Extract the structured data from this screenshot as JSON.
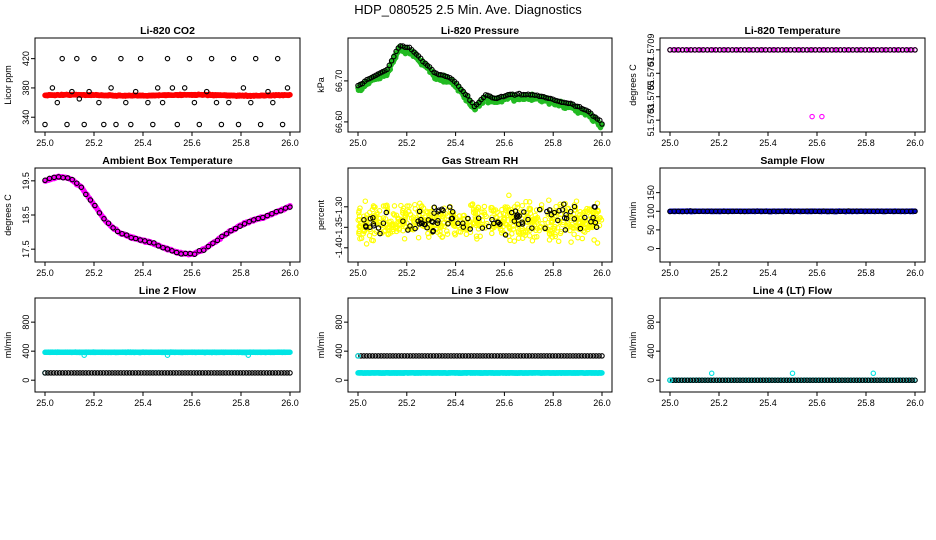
{
  "page": {
    "title": "HDP_080525  2.5 Min. Ave. Diagnostics"
  },
  "colors": {
    "axis": "#000000",
    "red": "#ff0000",
    "green": "#22bb22",
    "magenta": "#ff00ff",
    "yellow": "#ffff00",
    "blue": "#0000cc",
    "cyan": "#00e5e5",
    "black": "#000000"
  },
  "chart_data": [
    {
      "type": "scatter",
      "title": "Li-820 CO2",
      "ylabel": "Licor ppm",
      "xlim": [
        25.0,
        26.0
      ],
      "ylim": [
        328,
        440
      ],
      "xticks": [
        "25.0",
        "25.2",
        "25.4",
        "25.6",
        "25.8",
        "26.0"
      ],
      "yticks": [
        {
          "v": 340,
          "label": "340"
        },
        {
          "v": 380,
          "label": "380"
        },
        {
          "v": 420,
          "label": "420"
        }
      ],
      "series": [
        {
          "color": "red",
          "style": "dense",
          "base": 370,
          "amp": 2,
          "noise": 1.2,
          "count": 400
        },
        {
          "color": "black",
          "style": "points",
          "points": [
            [
              25.0,
              330
            ],
            [
              25.03,
              380
            ],
            [
              25.05,
              360
            ],
            [
              25.07,
              420
            ],
            [
              25.09,
              330
            ],
            [
              25.11,
              375
            ],
            [
              25.13,
              420
            ],
            [
              25.14,
              365
            ],
            [
              25.16,
              330
            ],
            [
              25.18,
              375
            ],
            [
              25.2,
              420
            ],
            [
              25.22,
              360
            ],
            [
              25.24,
              330
            ],
            [
              25.27,
              380
            ],
            [
              25.29,
              330
            ],
            [
              25.31,
              420
            ],
            [
              25.33,
              360
            ],
            [
              25.35,
              330
            ],
            [
              25.37,
              375
            ],
            [
              25.39,
              420
            ],
            [
              25.42,
              360
            ],
            [
              25.44,
              330
            ],
            [
              25.46,
              380
            ],
            [
              25.48,
              360
            ],
            [
              25.5,
              420
            ],
            [
              25.52,
              380
            ],
            [
              25.54,
              330
            ],
            [
              25.57,
              380
            ],
            [
              25.59,
              420
            ],
            [
              25.61,
              360
            ],
            [
              25.63,
              330
            ],
            [
              25.66,
              375
            ],
            [
              25.68,
              420
            ],
            [
              25.7,
              360
            ],
            [
              25.72,
              330
            ],
            [
              25.75,
              360
            ],
            [
              25.77,
              420
            ],
            [
              25.79,
              330
            ],
            [
              25.81,
              380
            ],
            [
              25.84,
              360
            ],
            [
              25.86,
              420
            ],
            [
              25.88,
              330
            ],
            [
              25.91,
              375
            ],
            [
              25.93,
              360
            ],
            [
              25.95,
              420
            ],
            [
              25.97,
              330
            ],
            [
              25.99,
              380
            ]
          ]
        }
      ]
    },
    {
      "type": "scatter",
      "title": "Li-820 Pressure",
      "ylabel": "kPa",
      "xlim": [
        25.0,
        26.0
      ],
      "ylim": [
        66.59,
        66.79
      ],
      "xticks": [
        "25.0",
        "25.2",
        "25.4",
        "25.6",
        "25.8",
        "26.0"
      ],
      "yticks": [
        {
          "v": 66.6,
          "label": "66.60"
        },
        {
          "v": 66.7,
          "label": "66.70"
        }
      ],
      "series": [
        {
          "color": "green",
          "style": "curve",
          "noise": 0.006,
          "count": 500,
          "knots": [
            [
              25.0,
              66.68
            ],
            [
              25.05,
              66.7
            ],
            [
              25.12,
              66.72
            ],
            [
              25.17,
              66.78
            ],
            [
              25.22,
              66.77
            ],
            [
              25.27,
              66.74
            ],
            [
              25.32,
              66.71
            ],
            [
              25.38,
              66.7
            ],
            [
              25.43,
              66.67
            ],
            [
              25.48,
              66.63
            ],
            [
              25.52,
              66.66
            ],
            [
              25.56,
              66.65
            ],
            [
              25.62,
              66.66
            ],
            [
              25.7,
              66.66
            ],
            [
              25.76,
              66.655
            ],
            [
              25.82,
              66.645
            ],
            [
              25.88,
              66.635
            ],
            [
              25.94,
              66.62
            ],
            [
              25.98,
              66.6
            ],
            [
              26.0,
              66.59
            ]
          ]
        },
        {
          "color": "black",
          "style": "curveSparse",
          "noise": 0.002,
          "count": 110,
          "dy": 0.007
        }
      ]
    },
    {
      "type": "scatter",
      "title": "Li-820 Temperature",
      "ylabel": "degrees C",
      "xlim": [
        25.0,
        26.0
      ],
      "ylim": [
        51.57025,
        51.57095
      ],
      "xticks": [
        "25.0",
        "25.2",
        "25.4",
        "25.6",
        "25.8",
        "26.0"
      ],
      "yticks": [
        {
          "v": 51.5703,
          "label": "51.5703"
        },
        {
          "v": 51.5705,
          "label": "51.5705"
        },
        {
          "v": 51.5707,
          "label": "51.5707"
        },
        {
          "v": 51.5709,
          "label": "51.5709"
        }
      ],
      "series": [
        {
          "color": "magenta",
          "style": "flat",
          "y": 51.5709,
          "count": 80
        },
        {
          "color": "black",
          "style": "flat",
          "y": 51.5709,
          "count": 60
        },
        {
          "color": "magenta",
          "style": "points",
          "points": [
            [
              25.58,
              51.57033
            ],
            [
              25.62,
              51.57033
            ]
          ]
        }
      ]
    },
    {
      "type": "scatter",
      "title": "Ambient Box Temperature",
      "ylabel": "degrees C",
      "xlim": [
        25.0,
        26.0
      ],
      "ylim": [
        17.3,
        19.7
      ],
      "xticks": [
        "25.0",
        "25.2",
        "25.4",
        "25.6",
        "25.8",
        "26.0"
      ],
      "yticks": [
        {
          "v": 17.5,
          "label": "17.5"
        },
        {
          "v": 18.5,
          "label": "18.5"
        },
        {
          "v": 19.5,
          "label": "19.5"
        }
      ],
      "series": [
        {
          "color": "magenta",
          "style": "curve",
          "noise": 0.02,
          "count": 380,
          "knots": [
            [
              25.0,
              19.5
            ],
            [
              25.05,
              19.62
            ],
            [
              25.1,
              19.58
            ],
            [
              25.15,
              19.3
            ],
            [
              25.2,
              18.8
            ],
            [
              25.25,
              18.3
            ],
            [
              25.3,
              18.0
            ],
            [
              25.35,
              17.85
            ],
            [
              25.4,
              17.75
            ],
            [
              25.45,
              17.65
            ],
            [
              25.5,
              17.5
            ],
            [
              25.55,
              17.38
            ],
            [
              25.6,
              17.35
            ],
            [
              25.65,
              17.5
            ],
            [
              25.7,
              17.75
            ],
            [
              25.75,
              18.0
            ],
            [
              25.8,
              18.2
            ],
            [
              25.85,
              18.35
            ],
            [
              25.9,
              18.45
            ],
            [
              25.95,
              18.6
            ],
            [
              26.0,
              18.75
            ]
          ]
        },
        {
          "color": "black",
          "style": "curveSparse",
          "noise": 0.02,
          "count": 55
        }
      ]
    },
    {
      "type": "scatter",
      "title": "Gas Stream RH",
      "ylabel": "percent",
      "xlim": [
        25.0,
        26.0
      ],
      "ylim": [
        -1.42,
        -1.22
      ],
      "xticks": [
        "25.0",
        "25.2",
        "25.4",
        "25.6",
        "25.8",
        "26.0"
      ],
      "yticks": [
        {
          "v": -1.4,
          "label": "-1.40"
        },
        {
          "v": -1.35,
          "label": "-1.35"
        },
        {
          "v": -1.3,
          "label": "-1.30"
        }
      ],
      "series": [
        {
          "color": "yellow",
          "style": "band",
          "center": -1.335,
          "spread": 0.045,
          "count": 650
        },
        {
          "color": "black",
          "style": "band",
          "center": -1.335,
          "spread": 0.035,
          "count": 95
        }
      ]
    },
    {
      "type": "scatter",
      "title": "Sample Flow",
      "ylabel": "ml/min",
      "xlim": [
        25.0,
        26.0
      ],
      "ylim": [
        -20,
        200
      ],
      "xticks": [
        "25.0",
        "25.2",
        "25.4",
        "25.6",
        "25.8",
        "26.0"
      ],
      "yticks": [
        {
          "v": 0,
          "label": "0"
        },
        {
          "v": 50,
          "label": "50"
        },
        {
          "v": 100,
          "label": "100"
        },
        {
          "v": 150,
          "label": "150"
        }
      ],
      "series": [
        {
          "color": "blue",
          "style": "flat",
          "y": 100,
          "count": 420,
          "jitter": 1.2
        },
        {
          "color": "black",
          "style": "flat",
          "y": 100,
          "count": 60,
          "jitter": 1
        }
      ]
    },
    {
      "type": "scatter",
      "title": "Line 2 Flow",
      "ylabel": "ml/min",
      "xlim": [
        25.0,
        26.0
      ],
      "ylim": [
        -80,
        1050
      ],
      "xticks": [
        "25.0",
        "25.2",
        "25.4",
        "25.6",
        "25.8",
        "26.0"
      ],
      "yticks": [
        {
          "v": 0,
          "label": "0"
        },
        {
          "v": 400,
          "label": "400"
        },
        {
          "v": 800,
          "label": "800"
        }
      ],
      "series": [
        {
          "color": "cyan",
          "style": "flat",
          "y": 385,
          "count": 500,
          "jitter": 5
        },
        {
          "color": "cyan",
          "style": "points",
          "points": [
            [
              25.0,
              100
            ],
            [
              25.16,
              345
            ],
            [
              25.5,
              345
            ],
            [
              25.83,
              345
            ]
          ]
        },
        {
          "color": "black",
          "style": "flatOpen",
          "y": 100,
          "count": 85
        }
      ]
    },
    {
      "type": "scatter",
      "title": "Line 3 Flow",
      "ylabel": "ml/min",
      "xlim": [
        25.0,
        26.0
      ],
      "ylim": [
        -80,
        1050
      ],
      "xticks": [
        "25.0",
        "25.2",
        "25.4",
        "25.6",
        "25.8",
        "26.0"
      ],
      "yticks": [
        {
          "v": 0,
          "label": "0"
        },
        {
          "v": 400,
          "label": "400"
        },
        {
          "v": 800,
          "label": "800"
        }
      ],
      "series": [
        {
          "color": "cyan",
          "style": "flat",
          "y": 100,
          "count": 500,
          "jitter": 4
        },
        {
          "color": "black",
          "style": "flatOpen",
          "y": 335,
          "count": 85
        },
        {
          "color": "cyan",
          "style": "points",
          "points": [
            [
              25.0,
              335
            ],
            [
              25.16,
              100
            ],
            [
              25.5,
              100
            ]
          ]
        }
      ]
    },
    {
      "type": "scatter",
      "title": "Line 4 (LT) Flow",
      "ylabel": "ml/min",
      "xlim": [
        25.0,
        26.0
      ],
      "ylim": [
        -80,
        1050
      ],
      "xticks": [
        "25.0",
        "25.2",
        "25.4",
        "25.6",
        "25.8",
        "26.0"
      ],
      "yticks": [
        {
          "v": 0,
          "label": "0"
        },
        {
          "v": 400,
          "label": "400"
        },
        {
          "v": 800,
          "label": "800"
        }
      ],
      "series": [
        {
          "color": "cyan",
          "style": "flat",
          "y": 0,
          "count": 120,
          "jitter": 1
        },
        {
          "color": "black",
          "style": "flatOpen",
          "y": 0,
          "count": 85
        },
        {
          "color": "cyan",
          "style": "points",
          "points": [
            [
              25.0,
              0
            ],
            [
              25.17,
              95
            ],
            [
              25.5,
              95
            ],
            [
              25.83,
              95
            ]
          ]
        }
      ]
    }
  ]
}
